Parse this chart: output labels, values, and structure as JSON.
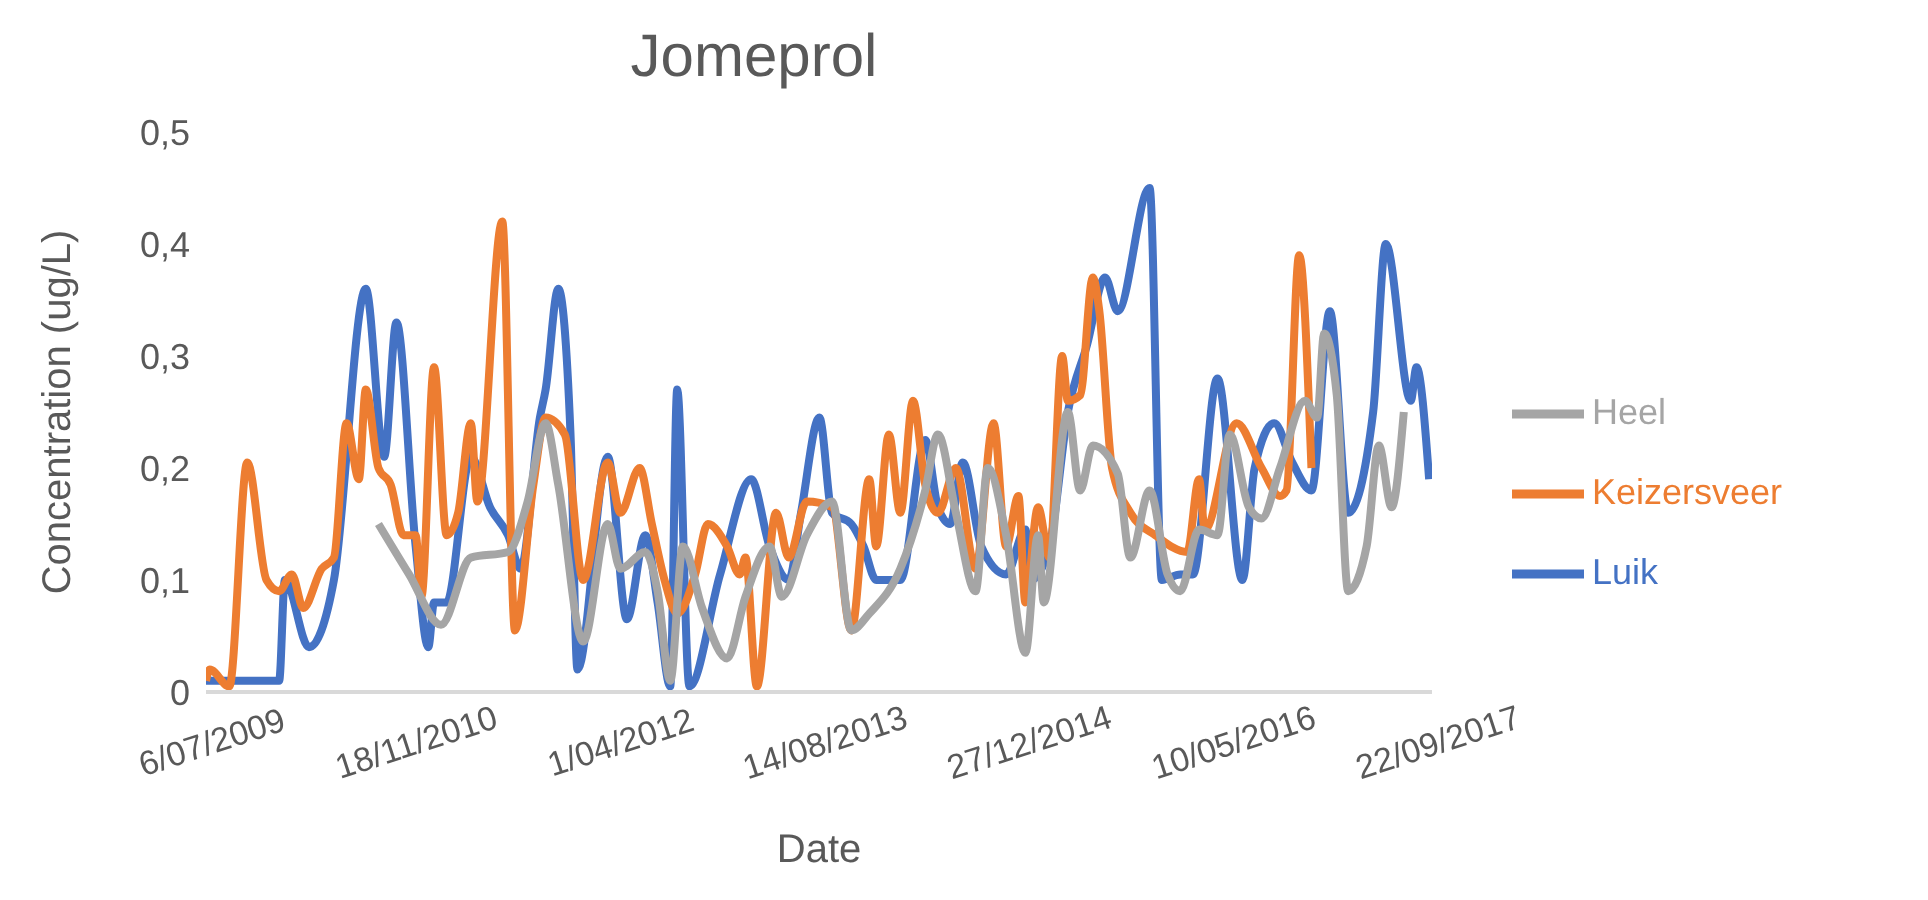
{
  "chart_data": {
    "type": "line",
    "title": "Jomeprol",
    "xlabel": "Date",
    "ylabel": "Concentration (ug/L)",
    "legend": "right",
    "grid": false,
    "marker": "none",
    "line_style": "solid",
    "xlim": [
      "2009-07-06",
      "2017-09-22"
    ],
    "xticks": [
      {
        "value": "2009-07-06",
        "label": "6/07/2009"
      },
      {
        "value": "2010-11-18",
        "label": "18/11/2010"
      },
      {
        "value": "2012-04-01",
        "label": "1/04/2012"
      },
      {
        "value": "2013-08-14",
        "label": "14/08/2013"
      },
      {
        "value": "2014-12-27",
        "label": "27/12/2014"
      },
      {
        "value": "2016-05-10",
        "label": "10/05/2016"
      },
      {
        "value": "2017-09-22",
        "label": "22/09/2017"
      }
    ],
    "ylim": [
      0,
      0.5
    ],
    "yticks": [
      0,
      {
        "value": 0.1,
        "label": "0,1"
      },
      {
        "value": 0.2,
        "label": "0,2"
      },
      {
        "value": 0.3,
        "label": "0,3"
      },
      {
        "value": 0.4,
        "label": "0,4"
      },
      {
        "value": 0.5,
        "label": "0,5"
      }
    ],
    "series": [
      {
        "name": "Luik",
        "color": "#4472c4",
        "x": [
          "2009-07-06",
          "2010-01-01",
          "2010-01-15",
          "2010-03-15",
          "2010-05-15",
          "2010-08-01",
          "2010-09-15",
          "2010-10-15",
          "2010-12-01",
          "2011-01-01",
          "2011-01-15",
          "2011-02-15",
          "2011-04-15",
          "2011-06-01",
          "2011-07-15",
          "2011-08-15",
          "2011-10-01",
          "2011-10-15",
          "2011-11-15",
          "2011-12-15",
          "2012-01-01",
          "2012-03-15",
          "2012-05-01",
          "2012-06-15",
          "2012-07-15",
          "2012-08-15",
          "2012-09-01",
          "2012-10-01",
          "2012-12-15",
          "2013-03-01",
          "2013-04-15",
          "2013-06-01",
          "2013-07-01",
          "2013-08-15",
          "2013-09-15",
          "2013-11-01",
          "2013-12-01",
          "2014-01-01",
          "2014-03-01",
          "2014-05-01",
          "2014-06-01",
          "2014-07-01",
          "2014-08-01",
          "2014-09-15",
          "2014-11-15",
          "2015-01-01",
          "2015-01-15",
          "2015-03-01",
          "2015-04-15",
          "2015-06-01",
          "2015-07-15",
          "2015-08-15",
          "2015-11-01",
          "2015-12-01",
          "2016-01-15",
          "2016-02-15",
          "2016-04-15",
          "2016-06-15",
          "2016-07-15",
          "2016-09-01",
          "2016-10-15",
          "2016-12-01",
          "2017-01-15",
          "2017-03-01",
          "2017-05-01",
          "2017-06-01",
          "2017-08-01",
          "2017-08-15",
          "2017-09-15"
        ],
        "values": [
          0.01,
          0.01,
          0.1,
          0.04,
          0.1,
          0.36,
          0.21,
          0.33,
          0.13,
          0.04,
          0.08,
          0.08,
          0.21,
          0.165,
          0.14,
          0.11,
          0.245,
          0.27,
          0.36,
          0.23,
          0.02,
          0.21,
          0.065,
          0.14,
          0.08,
          0.005,
          0.27,
          0.005,
          0.105,
          0.19,
          0.13,
          0.1,
          0.16,
          0.245,
          0.16,
          0.15,
          0.13,
          0.1,
          0.1,
          0.225,
          0.165,
          0.15,
          0.205,
          0.13,
          0.105,
          0.145,
          0.1,
          0.13,
          0.25,
          0.31,
          0.37,
          0.34,
          0.45,
          0.1,
          0.105,
          0.105,
          0.28,
          0.1,
          0.2,
          0.24,
          0.205,
          0.18,
          0.34,
          0.16,
          0.25,
          0.4,
          0.26,
          0.29,
          0.19
        ]
      },
      {
        "name": "Keizersveer",
        "color": "#ed7d31",
        "x": [
          "2009-07-06",
          "2009-07-15",
          "2009-09-01",
          "2009-10-15",
          "2009-12-01",
          "2010-01-01",
          "2010-02-01",
          "2010-03-01",
          "2010-04-15",
          "2010-05-15",
          "2010-06-15",
          "2010-07-15",
          "2010-08-01",
          "2010-09-01",
          "2010-10-01",
          "2010-11-01",
          "2010-12-01",
          "2010-12-15",
          "2011-01-15",
          "2011-02-15",
          "2011-03-15",
          "2011-04-15",
          "2011-05-01",
          "2011-07-01",
          "2011-08-01",
          "2011-09-15",
          "2011-10-15",
          "2011-12-01",
          "2012-01-15",
          "2012-03-15",
          "2012-04-15",
          "2012-06-01",
          "2012-07-01",
          "2012-08-01",
          "2012-09-01",
          "2012-10-15",
          "2012-11-15",
          "2013-01-01",
          "2013-02-01",
          "2013-02-15",
          "2013-03-15",
          "2013-05-01",
          "2013-06-01",
          "2013-07-15",
          "2013-09-15",
          "2013-11-01",
          "2013-12-15",
          "2014-01-01",
          "2014-02-01",
          "2014-03-01",
          "2014-04-01",
          "2014-05-01",
          "2014-06-01",
          "2014-07-15",
          "2014-09-01",
          "2014-10-15",
          "2014-11-15",
          "2014-12-15",
          "2015-01-01",
          "2015-02-01",
          "2015-03-01",
          "2015-04-01",
          "2015-04-15",
          "2015-05-15",
          "2015-06-15",
          "2015-07-01",
          "2015-08-01",
          "2015-09-15",
          "2015-11-15",
          "2016-02-01",
          "2016-03-01",
          "2016-03-15",
          "2016-06-01",
          "2016-08-01",
          "2016-09-15",
          "2016-10-01",
          "2016-11-01",
          "2016-12-01"
        ],
        "values": [
          0.01,
          0.02,
          0.005,
          0.205,
          0.1,
          0.09,
          0.105,
          0.075,
          0.11,
          0.12,
          0.24,
          0.19,
          0.27,
          0.2,
          0.185,
          0.14,
          0.14,
          0.085,
          0.29,
          0.14,
          0.16,
          0.24,
          0.17,
          0.42,
          0.055,
          0.185,
          0.245,
          0.23,
          0.1,
          0.205,
          0.16,
          0.2,
          0.15,
          0.1,
          0.07,
          0.105,
          0.15,
          0.13,
          0.105,
          0.12,
          0.005,
          0.16,
          0.12,
          0.17,
          0.165,
          0.055,
          0.19,
          0.13,
          0.23,
          0.16,
          0.26,
          0.185,
          0.16,
          0.2,
          0.11,
          0.24,
          0.13,
          0.175,
          0.08,
          0.165,
          0.12,
          0.3,
          0.26,
          0.265,
          0.37,
          0.34,
          0.2,
          0.16,
          0.14,
          0.125,
          0.19,
          0.145,
          0.24,
          0.2,
          0.175,
          0.18,
          0.39,
          0.2
        ]
      },
      {
        "name": "Heel",
        "color": "#a5a5a5",
        "x": [
          "2010-09-01",
          "2010-11-15",
          "2011-02-01",
          "2011-04-15",
          "2011-07-15",
          "2011-09-01",
          "2011-10-15",
          "2011-11-15",
          "2012-01-15",
          "2012-03-15",
          "2012-04-15",
          "2012-06-15",
          "2012-07-15",
          "2012-08-15",
          "2012-09-15",
          "2012-11-01",
          "2013-01-01",
          "2013-02-15",
          "2013-04-15",
          "2013-05-15",
          "2013-07-15",
          "2013-09-15",
          "2013-11-01",
          "2013-12-15",
          "2014-03-01",
          "2014-05-01",
          "2014-06-01",
          "2014-07-15",
          "2014-09-01",
          "2014-10-01",
          "2014-11-15",
          "2015-01-01",
          "2015-02-01",
          "2015-02-15",
          "2015-04-15",
          "2015-05-15",
          "2015-06-15",
          "2015-08-15",
          "2015-09-15",
          "2015-11-01",
          "2015-12-15",
          "2016-01-15",
          "2016-03-01",
          "2016-04-15",
          "2016-05-15",
          "2016-07-01",
          "2016-08-01",
          "2016-09-15",
          "2016-11-15",
          "2016-12-15",
          "2017-01-01",
          "2017-02-01",
          "2017-03-01",
          "2017-04-15",
          "2017-05-15",
          "2017-06-15",
          "2017-07-15"
        ],
        "values": [
          0.15,
          0.105,
          0.06,
          0.12,
          0.125,
          0.17,
          0.24,
          0.185,
          0.045,
          0.15,
          0.11,
          0.125,
          0.09,
          0.01,
          0.13,
          0.075,
          0.03,
          0.085,
          0.13,
          0.085,
          0.14,
          0.17,
          0.055,
          0.07,
          0.11,
          0.18,
          0.23,
          0.16,
          0.09,
          0.2,
          0.14,
          0.035,
          0.14,
          0.08,
          0.25,
          0.18,
          0.22,
          0.195,
          0.12,
          0.18,
          0.105,
          0.09,
          0.145,
          0.14,
          0.23,
          0.165,
          0.155,
          0.2,
          0.26,
          0.245,
          0.32,
          0.265,
          0.09,
          0.13,
          0.22,
          0.165,
          0.25
        ]
      }
    ]
  }
}
